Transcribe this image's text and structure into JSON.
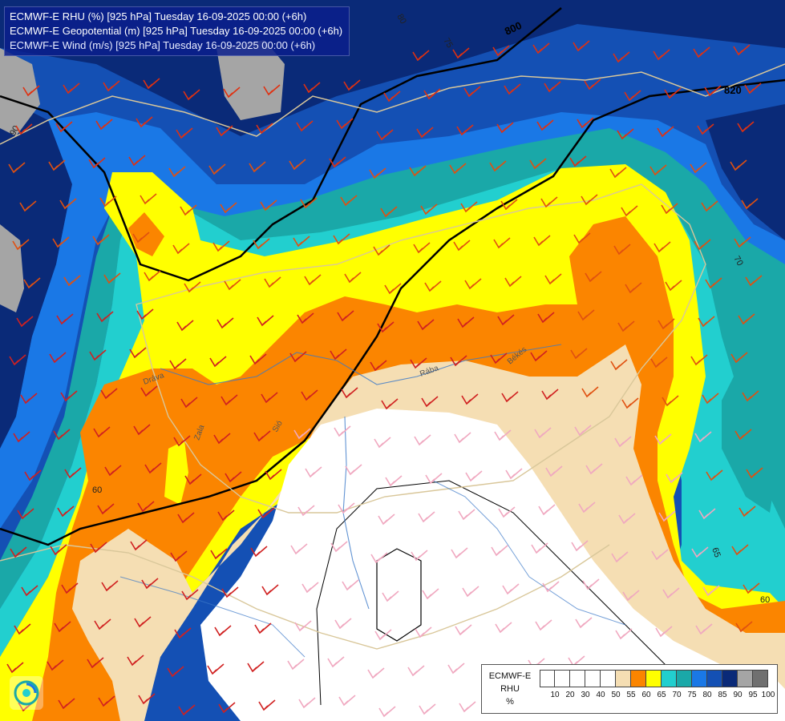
{
  "header": {
    "line1": "ECMWF-E RHU (%) [925 hPa] Tuesday 16-09-2025 00:00 (+6h)",
    "line2": "ECMWF-E Geopotential (m) [925 hPa] Tuesday 16-09-2025 00:00 (+6h)",
    "line3": "ECMWF-E Wind (m/s) [925 hPa] Tuesday 16-09-2025 00:00 (+6h)"
  },
  "map_labels": {
    "geo_800": "800",
    "geo_820": "820",
    "rhu_60a": "60",
    "rhu_60b": "60",
    "rhu_65": "65",
    "rhu_70": "70",
    "rhu_75": "75",
    "rhu_80": "80",
    "rhu_90": "90",
    "river_zala": "Zala",
    "river_drava": "Dráva",
    "river_raba": "Rába",
    "river_sio": "Sió",
    "river_bekes": "Békés"
  },
  "legend": {
    "title_line1": "ECMWF-E",
    "title_line2": "RHU",
    "title_line3": "%",
    "ticks": [
      "10",
      "20",
      "30",
      "40",
      "50",
      "55",
      "60",
      "65",
      "70",
      "75",
      "80",
      "85",
      "90",
      "95",
      "100"
    ],
    "colors": [
      "#ffffff",
      "#ffffff",
      "#ffffff",
      "#ffffff",
      "#ffffff",
      "#f5deb3",
      "#fb8500",
      "#ffff00",
      "#22cfcf",
      "#1aa8a8",
      "#1a78e6",
      "#1450b4",
      "#0a2a78",
      "#a5a5a5",
      "#707070"
    ]
  },
  "colors": {
    "orange": "#fb8500",
    "yellow": "#ffff00",
    "wheat": "#f5deb3",
    "cyan": "#22cfcf",
    "teal": "#1aa8a8",
    "blue": "#1a78e6",
    "midblue": "#1450b4",
    "darkblue": "#0a2a78",
    "grey": "#a5a5a5"
  },
  "icons": {
    "logo": "ecmwf-logo-icon"
  }
}
